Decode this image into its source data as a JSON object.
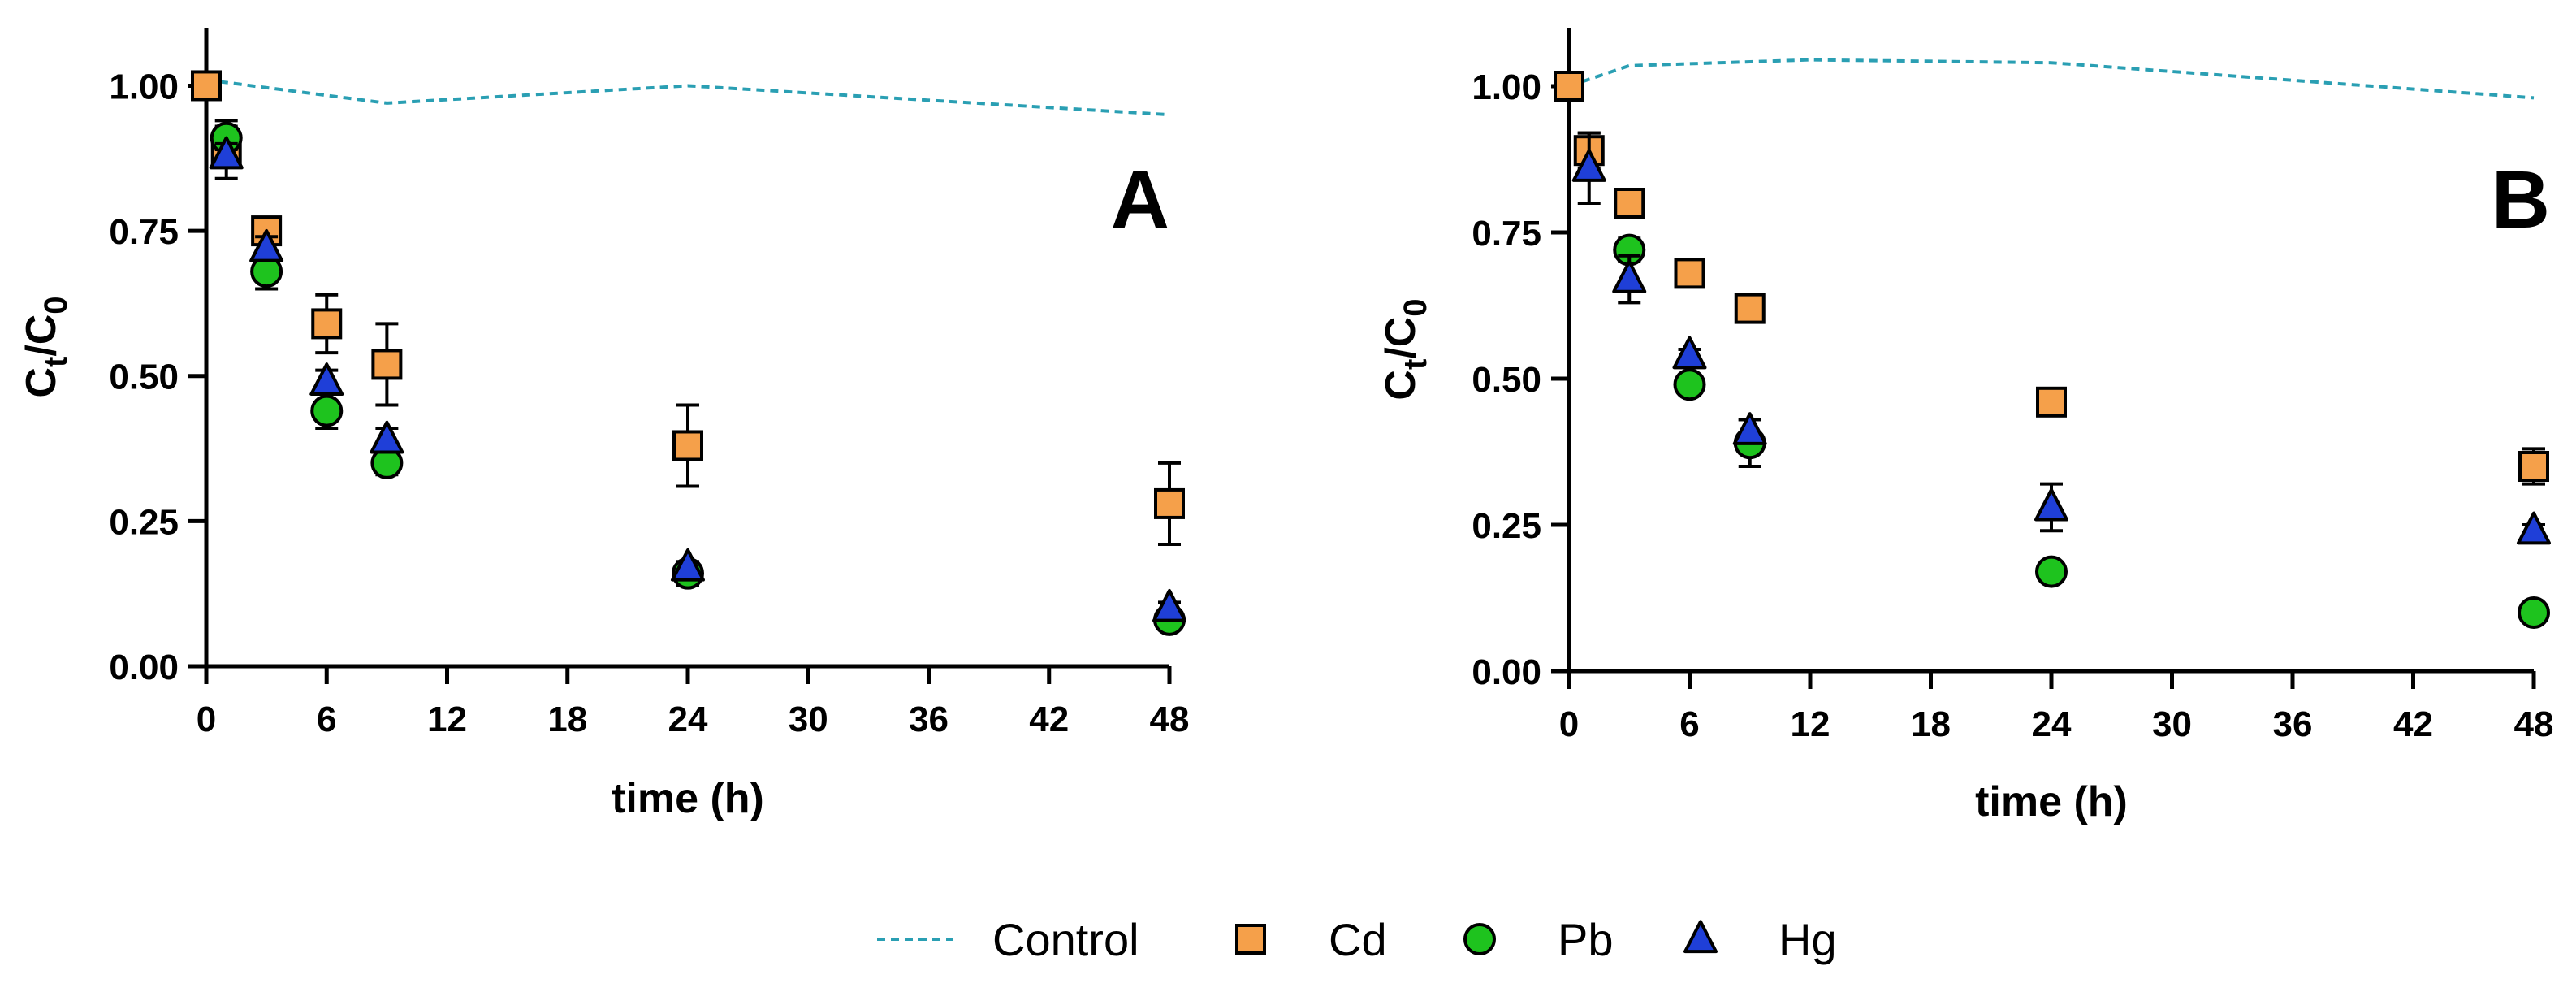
{
  "colors": {
    "control": "#2a9fb3",
    "cd": "#f5a04a",
    "pb": "#1ec31e",
    "hg": "#1f3fd8",
    "axis": "#000000"
  },
  "legend": {
    "items": [
      {
        "key": "control",
        "label": "Control",
        "marker": "dashed-line"
      },
      {
        "key": "cd",
        "label": "Cd",
        "marker": "square"
      },
      {
        "key": "pb",
        "label": "Pb",
        "marker": "circle"
      },
      {
        "key": "hg",
        "label": "Hg",
        "marker": "triangle"
      }
    ]
  },
  "chart_data": [
    {
      "type": "scatter",
      "panel_label": "A",
      "xlabel": "time (h)",
      "ylabel_main": "C",
      "ylabel_sub_t": "t",
      "ylabel_slash": "/C",
      "ylabel_sub_0": "0",
      "xlim": [
        0,
        48
      ],
      "ylim": [
        0,
        1.1
      ],
      "xticks": [
        0,
        6,
        12,
        18,
        24,
        30,
        36,
        42,
        48
      ],
      "yticks": [
        0.0,
        0.25,
        0.5,
        0.75,
        1.0
      ],
      "ytick_labels": [
        "0.00",
        "0.25",
        "0.50",
        "0.75",
        "1.00"
      ],
      "series": [
        {
          "name": "Control",
          "key": "control",
          "style": "dashed-line",
          "x": [
            0,
            9,
            24,
            48
          ],
          "y": [
            1.01,
            0.97,
            1.0,
            0.95
          ],
          "err": []
        },
        {
          "name": "Cd",
          "key": "cd",
          "style": "square",
          "x": [
            0,
            1,
            3,
            6,
            9,
            24,
            48
          ],
          "y": [
            1.0,
            0.89,
            0.75,
            0.59,
            0.52,
            0.38,
            0.28
          ],
          "err": [
            0,
            0.05,
            0.02,
            0.05,
            0.07,
            0.07,
            0.07
          ]
        },
        {
          "name": "Pb",
          "key": "pb",
          "style": "circle",
          "x": [
            1,
            3,
            6,
            9,
            24,
            48
          ],
          "y": [
            0.91,
            0.68,
            0.44,
            0.35,
            0.16,
            0.08
          ],
          "err": [
            0.02,
            0.03,
            0.03,
            0.02,
            0.02,
            0.01
          ]
        },
        {
          "name": "Hg",
          "key": "hg",
          "style": "triangle",
          "x": [
            1,
            3,
            6,
            9,
            24,
            48
          ],
          "y": [
            0.88,
            0.72,
            0.49,
            0.39,
            0.17,
            0.1
          ],
          "err": [
            0.02,
            0.02,
            0.02,
            0.02,
            0.01,
            0.01
          ]
        }
      ]
    },
    {
      "type": "scatter",
      "panel_label": "B",
      "xlabel": "time (h)",
      "ylabel_main": "C",
      "ylabel_sub_t": "t",
      "ylabel_slash": "/C",
      "ylabel_sub_0": "0",
      "xlim": [
        0,
        48
      ],
      "ylim": [
        0,
        1.1
      ],
      "xticks": [
        0,
        6,
        12,
        18,
        24,
        30,
        36,
        42,
        48
      ],
      "yticks": [
        0.0,
        0.25,
        0.5,
        0.75,
        1.0
      ],
      "ytick_labels": [
        "0.00",
        "0.25",
        "0.50",
        "0.75",
        "1.00"
      ],
      "series": [
        {
          "name": "Control",
          "key": "control",
          "style": "dashed-line",
          "x": [
            0,
            3,
            12,
            24,
            48
          ],
          "y": [
            1.0,
            1.035,
            1.045,
            1.04,
            0.98
          ],
          "err": []
        },
        {
          "name": "Cd",
          "key": "cd",
          "style": "square",
          "x": [
            0,
            1,
            3,
            6,
            9,
            24,
            48
          ],
          "y": [
            1.0,
            0.89,
            0.8,
            0.68,
            0.62,
            0.46,
            0.35
          ],
          "err": [
            0,
            0.03,
            0.02,
            0.01,
            0.01,
            0.01,
            0.03
          ]
        },
        {
          "name": "Pb",
          "key": "pb",
          "style": "circle",
          "x": [
            3,
            6,
            9,
            24,
            48
          ],
          "y": [
            0.72,
            0.49,
            0.39,
            0.17,
            0.1
          ],
          "err": [
            0.02,
            0.01,
            0.04,
            0.01,
            0.01
          ]
        },
        {
          "name": "Hg",
          "key": "hg",
          "style": "triangle",
          "x": [
            1,
            3,
            6,
            9,
            24,
            48
          ],
          "y": [
            0.86,
            0.67,
            0.54,
            0.41,
            0.28,
            0.24
          ],
          "err": [
            0.06,
            0.04,
            0.01,
            0.02,
            0.04,
            0.01
          ]
        }
      ]
    }
  ]
}
